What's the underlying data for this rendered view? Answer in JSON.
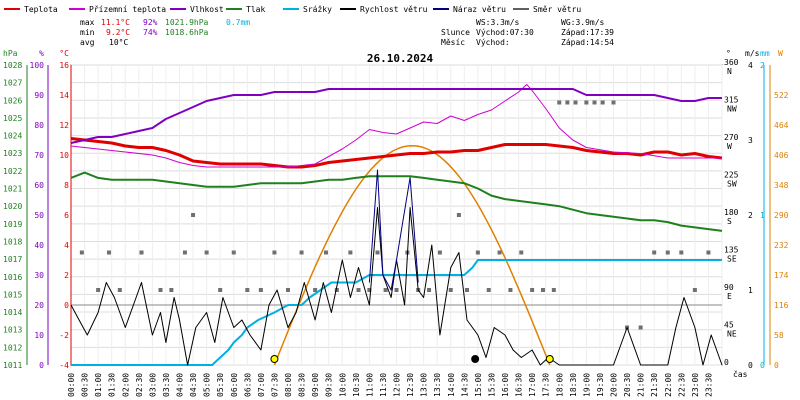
{
  "chart_data": {
    "type": "line",
    "title": "26.10.2024",
    "x_label": "čas",
    "x_ticks": [
      "00:00",
      "00:30",
      "01:00",
      "01:30",
      "02:00",
      "02:30",
      "03:00",
      "03:30",
      "04:00",
      "04:30",
      "05:00",
      "05:30",
      "06:00",
      "06:30",
      "07:00",
      "07:30",
      "08:00",
      "08:30",
      "09:00",
      "09:30",
      "10:00",
      "10:30",
      "11:00",
      "11:30",
      "12:00",
      "12:30",
      "13:00",
      "13:30",
      "14:00",
      "14:30",
      "15:00",
      "15:30",
      "16:00",
      "16:30",
      "17:00",
      "17:30",
      "18:00",
      "18:30",
      "19:00",
      "19:30",
      "20:00",
      "20:30",
      "21:00",
      "21:30",
      "22:00",
      "22:30",
      "23:00",
      "23:30"
    ],
    "legend": [
      {
        "name": "Teplota",
        "color": "#e00000"
      },
      {
        "name": "Přízemní teplota",
        "color": "#d000d0"
      },
      {
        "name": "Vlhkost",
        "color": "#8000c0"
      },
      {
        "name": "Tlak",
        "color": "#208020"
      },
      {
        "name": "Srážky",
        "color": "#00b0e0"
      },
      {
        "name": "Rychlost větru",
        "color": "#000000"
      },
      {
        "name": "Náraz větru",
        "color": "#000080"
      },
      {
        "name": "Směr větru",
        "color": "#606060"
      }
    ],
    "stats": {
      "max_label": "max",
      "min_label": "min",
      "avg_label": "avg",
      "temp_max": "11.1°C",
      "temp_min": "9.2°C",
      "temp_avg": "10°C",
      "hum_max": "92%",
      "hum_min": "74%",
      "press_max": "1021.9hPa",
      "press_min": "1018.6hPa",
      "rain": "0.7mm",
      "ws": "WS:3.3m/s",
      "wg": "WG:3.9m/s",
      "sun_label": "Slunce",
      "moon_label": "Měsíc",
      "sunrise": "Východ:07:30",
      "sunset": "Západ:17:39",
      "moonrise": "Východ:",
      "moonset": "Západ:14:54"
    },
    "axes": {
      "hpa": {
        "unit": "hPa",
        "color": "#208020",
        "ticks": [
          "1028",
          "1027",
          "1026",
          "1025",
          "1024",
          "1023",
          "1022",
          "1021",
          "1020",
          "1019",
          "1018",
          "1017",
          "1016",
          "1015",
          "1014",
          "1013",
          "1012",
          "1011"
        ],
        "range": [
          1011,
          1028
        ]
      },
      "pct": {
        "unit": "%",
        "color": "#8000c0",
        "ticks": [
          "100",
          "90",
          "80",
          "70",
          "60",
          "50",
          "40",
          "30",
          "20",
          "10",
          "0"
        ],
        "range": [
          0,
          100
        ]
      },
      "degc": {
        "unit": "°C",
        "color": "#e00000",
        "ticks": [
          "16",
          "14",
          "12",
          "10",
          "8",
          "6",
          "4",
          "2",
          "0",
          "-2",
          "-4"
        ],
        "range": [
          -4,
          16
        ]
      },
      "dir": {
        "unit": "°",
        "color": "#000000",
        "ticks": [
          "360",
          "315",
          "270",
          "225",
          "180",
          "135",
          "90",
          "45",
          "0"
        ],
        "labels": [
          "N",
          "NW",
          "W",
          "SW",
          "S",
          "SE",
          "E",
          "NE",
          ""
        ],
        "range": [
          0,
          360
        ]
      },
      "ms": {
        "unit": "m/s",
        "color": "#000000",
        "ticks": [
          "4",
          "3",
          "2",
          "1",
          "0"
        ],
        "range": [
          0,
          4
        ]
      },
      "mm": {
        "unit": "mm",
        "color": "#00b0e0",
        "ticks": [
          "2",
          "1",
          "0"
        ],
        "range": [
          0,
          2
        ]
      },
      "wm2": {
        "unit": "W",
        "color": "#e08000",
        "ticks": [
          "522",
          "464",
          "406",
          "348",
          "290",
          "232",
          "174",
          "116",
          "58",
          "0"
        ],
        "range": [
          0,
          580
        ]
      }
    },
    "series": [
      {
        "name": "Teplota",
        "axis": "degc",
        "color": "#e00000",
        "width": 3,
        "x": [
          0,
          0.5,
          1,
          1.5,
          2,
          2.5,
          3,
          3.5,
          4,
          4.5,
          5,
          5.5,
          6,
          6.5,
          7,
          7.5,
          8,
          8.5,
          9,
          9.5,
          10,
          10.5,
          11,
          11.5,
          12,
          12.5,
          13,
          13.5,
          14,
          14.5,
          15,
          15.5,
          16,
          16.5,
          17,
          17.5,
          18,
          18.5,
          19,
          19.5,
          20,
          20.5,
          21,
          21.5,
          22,
          22.5,
          23,
          23.5,
          24
        ],
        "y": [
          11.1,
          11,
          10.9,
          10.8,
          10.6,
          10.5,
          10.5,
          10.3,
          10,
          9.6,
          9.5,
          9.4,
          9.4,
          9.4,
          9.4,
          9.3,
          9.2,
          9.2,
          9.3,
          9.5,
          9.6,
          9.7,
          9.8,
          9.9,
          10,
          10.1,
          10.1,
          10.2,
          10.2,
          10.3,
          10.3,
          10.5,
          10.7,
          10.7,
          10.7,
          10.7,
          10.6,
          10.5,
          10.3,
          10.2,
          10.1,
          10.1,
          10.0,
          10.2,
          10.2,
          10.0,
          10.1,
          9.9,
          9.8
        ]
      },
      {
        "name": "Přízemní teplota",
        "axis": "degc",
        "color": "#d000d0",
        "width": 1,
        "x": [
          0,
          1,
          2,
          3,
          3.5,
          4,
          4.5,
          5,
          6,
          7,
          8,
          9,
          9.5,
          10,
          10.5,
          11,
          11.5,
          12,
          12.5,
          13,
          13.5,
          14,
          14.5,
          15,
          15.5,
          16,
          16.5,
          16.8,
          17,
          17.5,
          18,
          18.5,
          19,
          20,
          21,
          22,
          23,
          24
        ],
        "y": [
          10.6,
          10.4,
          10.2,
          10,
          9.8,
          9.5,
          9.3,
          9.2,
          9.2,
          9.2,
          9.2,
          9.4,
          9.9,
          10.4,
          11,
          11.7,
          11.5,
          11.4,
          11.8,
          12.2,
          12.1,
          12.6,
          12.3,
          12.7,
          13,
          13.6,
          14.2,
          14.7,
          14.3,
          13.1,
          11.8,
          11,
          10.5,
          10.2,
          10.1,
          9.8,
          9.8,
          9.8
        ]
      },
      {
        "name": "Vlhkost",
        "axis": "pct",
        "color": "#8000c0",
        "width": 2,
        "x": [
          0,
          0.5,
          1,
          1.5,
          2,
          2.5,
          3,
          3.5,
          4,
          4.5,
          5,
          5.5,
          6,
          6.5,
          7,
          7.5,
          8,
          8.5,
          9,
          9.5,
          10,
          10.5,
          11,
          11.5,
          12,
          12.5,
          13,
          13.5,
          14,
          14.5,
          15,
          15.5,
          16,
          16.5,
          17,
          17.5,
          18,
          18.5,
          19,
          19.5,
          20,
          20.5,
          21,
          21.5,
          22,
          22.5,
          23,
          23.5,
          24
        ],
        "y": [
          74,
          75,
          76,
          76,
          77,
          78,
          79,
          82,
          84,
          86,
          88,
          89,
          90,
          90,
          90,
          91,
          91,
          91,
          91,
          92,
          92,
          92,
          92,
          92,
          92,
          92,
          92,
          92,
          92,
          92,
          92,
          92,
          92,
          92,
          92,
          92,
          92,
          92,
          90,
          90,
          90,
          90,
          90,
          90,
          89,
          88,
          88,
          89,
          89
        ]
      },
      {
        "name": "Tlak",
        "axis": "hpa",
        "color": "#208020",
        "width": 2,
        "x": [
          0,
          0.5,
          1,
          1.5,
          2,
          2.5,
          3,
          3.5,
          4,
          4.5,
          5,
          5.5,
          6,
          6.5,
          7,
          7.5,
          8,
          8.5,
          9,
          9.5,
          10,
          10.5,
          11,
          11.5,
          12,
          12.5,
          13,
          13.5,
          14,
          14.5,
          15,
          15.5,
          16,
          16.5,
          17,
          17.5,
          18,
          18.5,
          19,
          19.5,
          20,
          20.5,
          21,
          21.5,
          22,
          22.5,
          23,
          23.5,
          24
        ],
        "y": [
          1021.6,
          1021.9,
          1021.6,
          1021.5,
          1021.5,
          1021.5,
          1021.5,
          1021.4,
          1021.3,
          1021.2,
          1021.1,
          1021.1,
          1021.1,
          1021.2,
          1021.3,
          1021.3,
          1021.3,
          1021.3,
          1021.4,
          1021.5,
          1021.5,
          1021.6,
          1021.7,
          1021.7,
          1021.7,
          1021.7,
          1021.6,
          1021.5,
          1021.4,
          1021.3,
          1021.0,
          1020.6,
          1020.4,
          1020.3,
          1020.2,
          1020.1,
          1020.0,
          1019.8,
          1019.6,
          1019.5,
          1019.4,
          1019.3,
          1019.2,
          1019.2,
          1019.1,
          1018.9,
          1018.8,
          1018.7,
          1018.6
        ]
      },
      {
        "name": "Srážky",
        "axis": "mm",
        "color": "#00b0e0",
        "width": 2,
        "x": [
          0,
          5.2,
          5.5,
          5.8,
          6.0,
          6.3,
          6.5,
          6.9,
          7.5,
          8.0,
          8.5,
          8.8,
          9.2,
          9.6,
          10,
          10.5,
          11,
          11.5,
          12,
          12.5,
          13,
          13.5,
          14,
          14.5,
          14.8,
          15,
          16,
          17,
          18,
          19,
          20,
          21,
          22,
          23,
          24
        ],
        "y": [
          0,
          0,
          0.05,
          0.1,
          0.15,
          0.2,
          0.25,
          0.3,
          0.35,
          0.4,
          0.4,
          0.45,
          0.5,
          0.55,
          0.55,
          0.55,
          0.6,
          0.6,
          0.6,
          0.6,
          0.6,
          0.6,
          0.6,
          0.6,
          0.65,
          0.7,
          0.7,
          0.7,
          0.7,
          0.7,
          0.7,
          0.7,
          0.7,
          0.7,
          0.7
        ]
      },
      {
        "name": "Rychlost větru",
        "axis": "ms",
        "color": "#000000",
        "width": 1,
        "x": [
          0,
          0.3,
          0.6,
          1.0,
          1.3,
          1.6,
          2.0,
          2.3,
          2.6,
          3.0,
          3.3,
          3.5,
          3.8,
          4.0,
          4.3,
          4.6,
          5.0,
          5.3,
          5.6,
          6.0,
          6.3,
          6.6,
          7.0,
          7.3,
          7.6,
          8.0,
          8.3,
          8.6,
          9.0,
          9.3,
          9.6,
          10.0,
          10.3,
          10.6,
          11.0,
          11.3,
          11.5,
          11.8,
          12.0,
          12.3,
          12.5,
          12.8,
          13.0,
          13.3,
          13.6,
          14.0,
          14.3,
          14.6,
          15.0,
          15.3,
          15.6,
          16.0,
          16.3,
          16.6,
          17.0,
          17.3,
          17.6,
          18,
          19,
          20,
          20.5,
          21,
          21.3,
          21.6,
          22,
          22.3,
          22.6,
          23,
          23.3,
          23.6,
          24
        ],
        "y": [
          0.8,
          0.6,
          0.4,
          0.7,
          1.1,
          0.9,
          0.5,
          0.8,
          1.1,
          0.4,
          0.7,
          0.3,
          0.9,
          0.6,
          0.0,
          0.5,
          0.7,
          0.3,
          0.9,
          0.5,
          0.6,
          0.4,
          0.2,
          0.8,
          1.0,
          0.5,
          0.7,
          1.1,
          0.6,
          1.1,
          0.7,
          1.4,
          0.9,
          1.3,
          0.8,
          2.1,
          1.2,
          0.9,
          1.4,
          0.8,
          2.1,
          1.0,
          0.9,
          1.6,
          0.4,
          1.3,
          1.5,
          0.6,
          0.4,
          0.1,
          0.5,
          0.4,
          0.2,
          0.1,
          0.2,
          0.0,
          0.1,
          0.0,
          0.0,
          0.0,
          0.5,
          0.0,
          0.0,
          0.0,
          0.0,
          0.5,
          0.9,
          0.5,
          0.0,
          0.4,
          0.0
        ]
      },
      {
        "name": "Náraz větru",
        "axis": "ms",
        "color": "#000080",
        "width": 1,
        "x": [
          11.0,
          11.3,
          11.5,
          11.8,
          12.0,
          12.5,
          12.8
        ],
        "y": [
          1.1,
          2.6,
          1.2,
          1.0,
          1.4,
          2.5,
          1.1
        ]
      }
    ],
    "solar": {
      "name": "Sluneční záření",
      "axis": "wm2",
      "color": "#e08000",
      "sunrise_h": 7.5,
      "sunset_h": 17.65,
      "peak": 424
    },
    "wind_dir_points": [
      [
        0.4,
        135
      ],
      [
        1.0,
        90
      ],
      [
        1.4,
        135
      ],
      [
        1.8,
        90
      ],
      [
        2.6,
        135
      ],
      [
        3.3,
        90
      ],
      [
        3.7,
        90
      ],
      [
        4.2,
        135
      ],
      [
        4.5,
        180
      ],
      [
        5.0,
        135
      ],
      [
        5.5,
        90
      ],
      [
        6.0,
        135
      ],
      [
        6.5,
        90
      ],
      [
        7.0,
        90
      ],
      [
        7.5,
        135
      ],
      [
        8.0,
        90
      ],
      [
        8.5,
        135
      ],
      [
        9.0,
        90
      ],
      [
        9.4,
        135
      ],
      [
        9.8,
        90
      ],
      [
        10.3,
        135
      ],
      [
        10.6,
        90
      ],
      [
        11.0,
        90
      ],
      [
        11.3,
        135
      ],
      [
        11.6,
        90
      ],
      [
        12.0,
        90
      ],
      [
        12.4,
        135
      ],
      [
        12.8,
        90
      ],
      [
        13.2,
        90
      ],
      [
        13.6,
        135
      ],
      [
        14.0,
        90
      ],
      [
        14.3,
        180
      ],
      [
        14.6,
        90
      ],
      [
        15.0,
        135
      ],
      [
        15.4,
        90
      ],
      [
        15.8,
        135
      ],
      [
        16.2,
        90
      ],
      [
        16.6,
        135
      ],
      [
        17.0,
        90
      ],
      [
        17.4,
        90
      ],
      [
        17.8,
        90
      ],
      [
        18.0,
        315
      ],
      [
        18.3,
        315
      ],
      [
        18.6,
        315
      ],
      [
        19.0,
        315
      ],
      [
        19.3,
        315
      ],
      [
        19.6,
        315
      ],
      [
        20.0,
        315
      ],
      [
        20.5,
        45
      ],
      [
        21.0,
        45
      ],
      [
        21.5,
        135
      ],
      [
        22.0,
        135
      ],
      [
        22.5,
        135
      ],
      [
        23.0,
        90
      ],
      [
        23.5,
        135
      ]
    ],
    "markers": [
      {
        "label": "sunrise",
        "x": 7.5,
        "type": "sun"
      },
      {
        "label": "sunset",
        "x": 17.65,
        "type": "sun"
      },
      {
        "label": "moonset",
        "x": 14.9,
        "type": "moon"
      }
    ]
  }
}
